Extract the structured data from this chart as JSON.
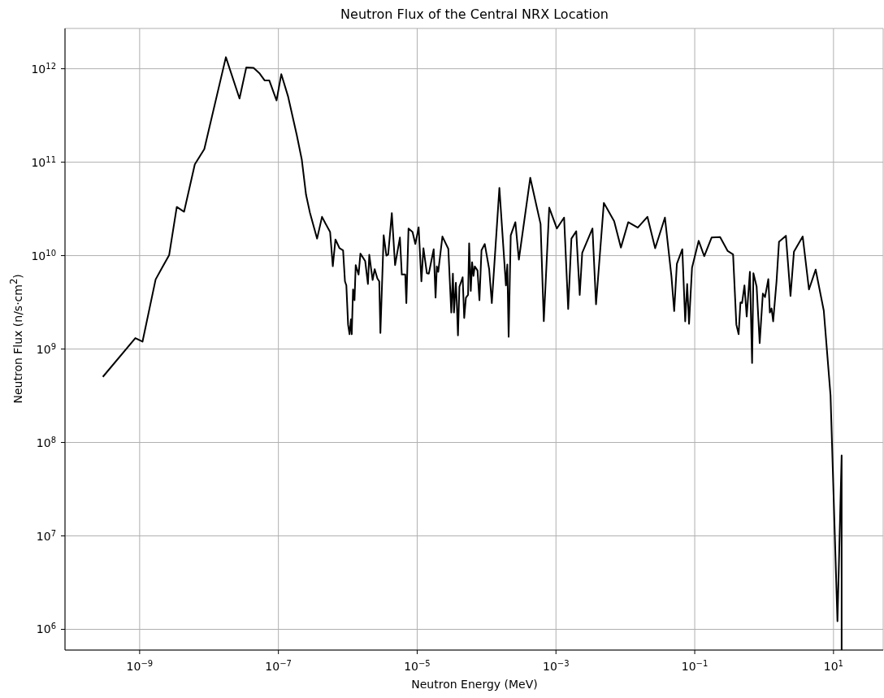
{
  "chart_data": {
    "type": "line",
    "title": "Neutron Flux of the Central NRX Location",
    "xlabel": "Neutron Energy (MeV)",
    "ylabel": "Neutron Flux (n/s·cm$^{2}$)",
    "log": "xy",
    "grid": true,
    "xlim": [
      8.4e-11,
      52
    ],
    "ylim": [
      600000.0,
      2700000000000.0
    ],
    "xticks": [
      {
        "value": 1e-09,
        "label": "10$^{−9}$"
      },
      {
        "value": 1e-07,
        "label": "10$^{−7}$"
      },
      {
        "value": 1e-05,
        "label": "10$^{−5}$"
      },
      {
        "value": 0.001,
        "label": "10$^{−3}$"
      },
      {
        "value": 0.1,
        "label": "10$^{−1}$"
      },
      {
        "value": 10,
        "label": "10$^{1}$"
      }
    ],
    "yticks": [
      {
        "value": 1000000.0,
        "label": "10$^{6}$"
      },
      {
        "value": 10000000.0,
        "label": "10$^{7}$"
      },
      {
        "value": 100000000.0,
        "label": "10$^{8}$"
      },
      {
        "value": 1000000000.0,
        "label": "10$^{9}$"
      },
      {
        "value": 10000000000.0,
        "label": "10$^{10}$"
      },
      {
        "value": 100000000000.0,
        "label": "10$^{11}$"
      },
      {
        "value": 1000000000000.0,
        "label": "10$^{12}$"
      }
    ],
    "x": [
      2.95e-10,
      8.67e-10,
      1.1e-09,
      1.7e-09,
      2.12e-09,
      2.66e-09,
      3.43e-09,
      4.37e-09,
      6.24e-09,
      8.55e-09,
      1.75e-08,
      2.75e-08,
      3.44e-08,
      4.38e-08,
      5.38e-08,
      6.32e-08,
      7.38e-08,
      9.4e-08,
      1.1e-07,
      1.38e-07,
      1.84e-07,
      2.17e-07,
      2.5e-07,
      2.84e-07,
      3.61e-07,
      4.25e-07,
      4.73e-07,
      5.56e-07,
      6.08e-07,
      6.64e-07,
      7.6e-07,
      8.55e-07,
      9.1e-07,
      9.53e-07,
      1.01e-06,
      1.06e-06,
      1.11e-06,
      1.14e-06,
      1.19e-06,
      1.25e-06,
      1.3e-06,
      1.43e-06,
      1.52e-06,
      1.78e-06,
      1.95e-06,
      2.04e-06,
      2.17e-06,
      2.28e-06,
      2.44e-06,
      2.67e-06,
      2.84e-06,
      2.95e-06,
      3.29e-06,
      3.6e-06,
      3.82e-06,
      4.31e-06,
      4.8e-06,
      5.64e-06,
      6e-06,
      6.73e-06,
      6.98e-06,
      7.5e-06,
      8.57e-06,
      9.4e-06,
      1.05e-05,
      1.15e-05,
      1.23e-05,
      1.38e-05,
      1.47e-05,
      1.57e-05,
      1.73e-05,
      1.84e-05,
      1.92e-05,
      2.01e-05,
      2.31e-05,
      2.81e-05,
      3.1e-05,
      3.27e-05,
      3.39e-05,
      3.61e-05,
      3.72e-05,
      3.87e-05,
      4.06e-05,
      4.32e-05,
      4.52e-05,
      4.76e-05,
      5.04e-05,
      5.41e-05,
      5.61e-05,
      5.92e-05,
      6.19e-05,
      6.47e-05,
      6.76e-05,
      7.4e-05,
      7.89e-05,
      8.45e-05,
      9.42e-05,
      0.000109,
      0.000119,
      0.000153,
      0.00019,
      0.000199,
      0.000208,
      0.000223,
      0.00026,
      0.000292,
      0.000426,
      0.0006,
      0.000668,
      0.0008,
      0.00103,
      0.00131,
      0.0015,
      0.00167,
      0.00196,
      0.0022,
      0.00239,
      0.00336,
      0.00378,
      0.0049,
      0.0069,
      0.00863,
      0.011,
      0.0151,
      0.0208,
      0.0269,
      0.0372,
      0.0461,
      0.0506,
      0.0553,
      0.0662,
      0.0729,
      0.0778,
      0.0828,
      0.0914,
      0.114,
      0.137,
      0.175,
      0.232,
      0.299,
      0.357,
      0.398,
      0.429,
      0.456,
      0.481,
      0.521,
      0.561,
      0.624,
      0.671,
      0.701,
      0.78,
      0.863,
      0.959,
      1.03,
      1.15,
      1.21,
      1.28,
      1.35,
      1.51,
      1.64,
      2.06,
      2.4,
      2.69,
      3.6,
      4.43,
      5.53,
      7.24,
      9.06,
      11.4,
      13.1,
      13.1
    ],
    "series": [
      {
        "color": "#000000",
        "values": [
          504000000.0,
          1310000000.0,
          1200000000.0,
          5560000000.0,
          7500000000.0,
          10100000000.0,
          33200000000.0,
          29500000000.0,
          94800000000.0,
          138000000000.0,
          1330000000000.0,
          480000000000.0,
          1030000000000.0,
          1020000000000.0,
          887000000000.0,
          751000000000.0,
          751000000000.0,
          458000000000.0,
          874000000000.0,
          503000000000.0,
          195000000000.0,
          107000000000.0,
          44900000000.0,
          29000000000.0,
          15200000000.0,
          26000000000.0,
          22300000000.0,
          17900000000.0,
          7710000000.0,
          14900000000.0,
          12000000000.0,
          11400000000.0,
          5300000000.0,
          4800000000.0,
          1820000000.0,
          1440000000.0,
          2080000000.0,
          1440000000.0,
          4340000000.0,
          3330000000.0,
          7910000000.0,
          6270000000.0,
          10500000000.0,
          8750000000.0,
          4970000000.0,
          10200000000.0,
          7160000000.0,
          5480000000.0,
          7160000000.0,
          5680000000.0,
          5300000000.0,
          1490000000.0,
          16500000000.0,
          10000000000.0,
          10300000000.0,
          28500000000.0,
          7910000000.0,
          15600000000.0,
          6270000000.0,
          6270000000.0,
          3110000000.0,
          19500000000.0,
          17900000000.0,
          13300000000.0,
          20100000000.0,
          5300000000.0,
          12000000000.0,
          6470000000.0,
          6400000000.0,
          8190000000.0,
          11700000000.0,
          3550000000.0,
          7660000000.0,
          6700000000.0,
          16000000000.0,
          11800000000.0,
          2460000000.0,
          6400000000.0,
          2460000000.0,
          5130000000.0,
          3210000000.0,
          1400000000.0,
          4650000000.0,
          5300000000.0,
          5860000000.0,
          2150000000.0,
          3550000000.0,
          3800000000.0,
          13500000000.0,
          4200000000.0,
          8470000000.0,
          6060000000.0,
          7660000000.0,
          6930000000.0,
          3330000000.0,
          11400000000.0,
          13300000000.0,
          7160000000.0,
          3110000000.0,
          53000000000.0,
          4800000000.0,
          8020000000.0,
          1350000000.0,
          16500000000.0,
          22800000000.0,
          9060000000.0,
          68000000000.0,
          21800000000.0,
          1990000000.0,
          32600000000.0,
          19500000000.0,
          25500000000.0,
          2680000000.0,
          15200000000.0,
          18200000000.0,
          3800000000.0,
          10700000000.0,
          19500000000.0,
          3010000000.0,
          36700000000.0,
          23300000000.0,
          12200000000.0,
          22800000000.0,
          19900000000.0,
          26000000000.0,
          12000000000.0,
          25500000000.0,
          6060000000.0,
          2550000000.0,
          8190000000.0,
          11700000000.0,
          1980000000.0,
          4970000000.0,
          1860000000.0,
          7410000000.0,
          14400000000.0,
          9860000000.0,
          15600000000.0,
          15800000000.0,
          11200000000.0,
          10300000000.0,
          1820000000.0,
          1440000000.0,
          3150000000.0,
          3110000000.0,
          4800000000.0,
          2230000000.0,
          6700000000.0,
          708000000.0,
          6470000000.0,
          4650000000.0,
          1160000000.0,
          3930000000.0,
          3600000000.0,
          5600000000.0,
          2460000000.0,
          2720000000.0,
          1980000000.0,
          5300000000.0,
          14100000000.0,
          16300000000.0,
          3700000000.0,
          11000000000.0,
          16000000000.0,
          4340000000.0,
          7080000000.0,
          2580000000.0,
          319000000.0,
          1220000.0,
          72600000.0,
          600000.0
        ]
      }
    ]
  }
}
